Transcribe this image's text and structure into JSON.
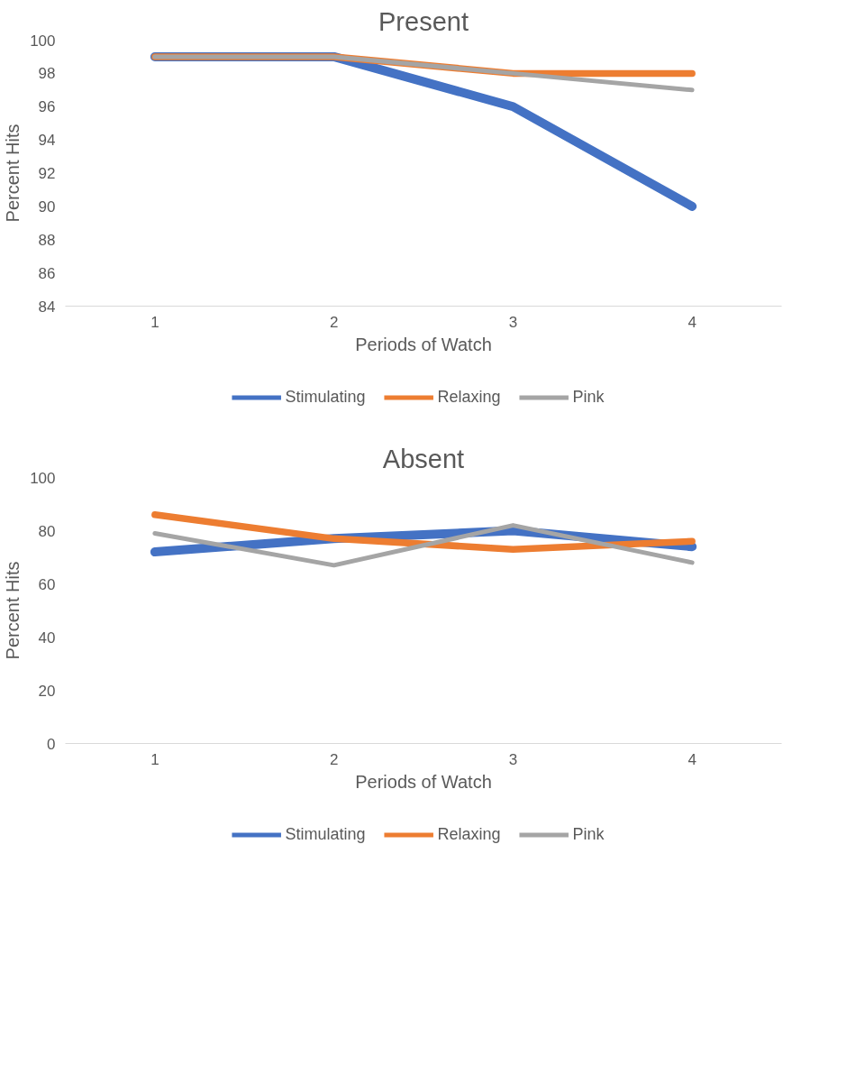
{
  "chart_data": [
    {
      "type": "line",
      "title": "Present",
      "xlabel": "Periods of Watch",
      "ylabel": "Percent Hits",
      "categories": [
        "1",
        "2",
        "3",
        "4"
      ],
      "ylim": [
        84,
        100
      ],
      "yticks": [
        84,
        86,
        88,
        90,
        92,
        94,
        96,
        98,
        100
      ],
      "grid": false,
      "legend": "bottom",
      "marker": "none",
      "line_style": "solid",
      "series": [
        {
          "name": "Stimulating",
          "color": "#4472c4",
          "values": [
            99,
            99,
            96,
            90
          ]
        },
        {
          "name": "Relaxing",
          "color": "#ed7d31",
          "values": [
            99,
            99,
            98,
            98
          ]
        },
        {
          "name": "Pink",
          "color": "#a5a5a5",
          "values": [
            99,
            99,
            98,
            97
          ]
        }
      ]
    },
    {
      "type": "line",
      "title": "Absent",
      "xlabel": "Periods of Watch",
      "ylabel": "Percent Hits",
      "categories": [
        "1",
        "2",
        "3",
        "4"
      ],
      "ylim": [
        0,
        100
      ],
      "yticks": [
        0,
        20,
        40,
        60,
        80,
        100
      ],
      "grid": false,
      "legend": "bottom",
      "marker": "none",
      "line_style": "solid",
      "series": [
        {
          "name": "Stimulating",
          "color": "#4472c4",
          "values": [
            72,
            77,
            80,
            74
          ]
        },
        {
          "name": "Relaxing",
          "color": "#ed7d31",
          "values": [
            86,
            77,
            73,
            76
          ]
        },
        {
          "name": "Pink",
          "color": "#a5a5a5",
          "values": [
            79,
            67,
            82,
            68
          ]
        }
      ]
    }
  ]
}
